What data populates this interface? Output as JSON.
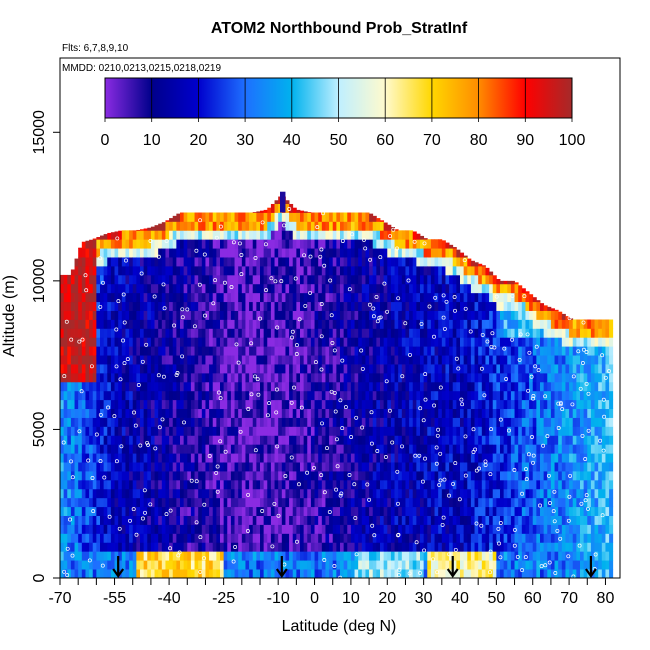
{
  "chart_data": {
    "type": "heatmap",
    "title": "ATOM2 Northbound Prob_StratInf",
    "flights_note": "Flts: 6,7,8,9,10",
    "dates_note": "MMDD: 0210,0213,0215,0218,0219",
    "xlabel": "Latitude (deg N)",
    "ylabel": "Altitude (m)",
    "xlim": [
      -70,
      84
    ],
    "ylim": [
      0,
      17500
    ],
    "x_tick_labels": [
      "-70",
      "-55",
      "-40",
      "-25",
      "-10",
      "0",
      "10",
      "20",
      "30",
      "40",
      "50",
      "60",
      "70",
      "80"
    ],
    "x_tick_values": [
      -70,
      -55,
      -40,
      -25,
      -10,
      0,
      10,
      20,
      30,
      40,
      50,
      60,
      70,
      80
    ],
    "x_minor_ticks": [
      -65,
      -60,
      -50,
      -45,
      -35,
      -30,
      -20,
      -15,
      -5,
      5,
      15,
      25,
      35,
      45,
      55,
      65,
      75
    ],
    "y_tick_labels": [
      "0",
      "5000",
      "10000",
      "15000"
    ],
    "y_tick_values": [
      0,
      5000,
      10000,
      15000
    ],
    "colorbar": {
      "range": [
        0,
        100
      ],
      "tick_labels": [
        "0",
        "10",
        "20",
        "30",
        "40",
        "50",
        "60",
        "70",
        "80",
        "90",
        "100"
      ],
      "tick_values": [
        0,
        10,
        20,
        30,
        40,
        50,
        60,
        70,
        80,
        90,
        100
      ],
      "colors": [
        "#8a2be2",
        "#00008b",
        "#0000cd",
        "#1e6fff",
        "#00b2ee",
        "#bfefff",
        "#fffacd",
        "#ffd700",
        "#ff8c00",
        "#ff0000",
        "#a52a2a"
      ]
    },
    "arrow_latitudes": [
      -54,
      -9,
      38,
      76
    ],
    "ceiling_profile": {
      "lat": [
        -70,
        -67,
        -64,
        -61,
        -57,
        -53,
        -49,
        -45,
        -41,
        -37,
        -33,
        -29,
        -25,
        -21,
        -17,
        -13,
        -9,
        -5,
        -1,
        3,
        7,
        11,
        15,
        19,
        23,
        27,
        31,
        35,
        39,
        43,
        47,
        51,
        55,
        59,
        63,
        67,
        71,
        75,
        79,
        83
      ],
      "alt": [
        10200,
        10200,
        11300,
        11400,
        11600,
        11700,
        11700,
        11800,
        12000,
        12300,
        12300,
        12300,
        12300,
        12300,
        12300,
        12400,
        12900,
        12400,
        12300,
        12300,
        12300,
        12300,
        12300,
        12000,
        11700,
        11700,
        11400,
        11400,
        11100,
        10700,
        10500,
        10000,
        10000,
        9600,
        9200,
        9000,
        8700,
        8700,
        8700,
        8700
      ]
    }
  }
}
